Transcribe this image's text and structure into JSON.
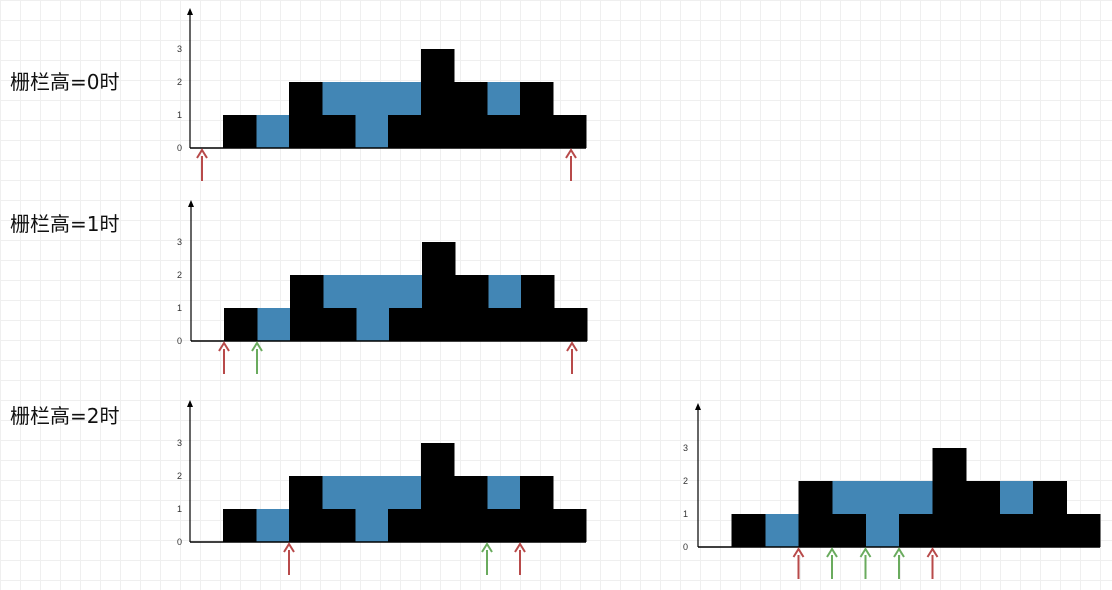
{
  "labels": [
    "栅栏高=0时",
    "栅栏高=1时",
    "栅栏高=2时"
  ],
  "colors": {
    "bar": "#000000",
    "water": "#4286b5",
    "red_arrow": "#b84a4a",
    "green_arrow": "#6aab5e"
  },
  "chart_data": {
    "type": "bar",
    "heights": [
      0,
      1,
      0,
      2,
      1,
      0,
      1,
      3,
      2,
      1,
      2,
      1
    ],
    "water": [
      0,
      0,
      1,
      0,
      1,
      2,
      1,
      0,
      0,
      1,
      0,
      0
    ],
    "y_ticks": [
      "0",
      "1",
      "2",
      "3"
    ],
    "ylim": [
      0,
      3
    ],
    "panels": [
      {
        "arrows": [
          {
            "index": 0,
            "color": "red"
          },
          {
            "index": 11,
            "color": "red"
          }
        ]
      },
      {
        "arrows": [
          {
            "index": 1,
            "color": "red"
          },
          {
            "index": 2,
            "color": "green"
          },
          {
            "index": 11,
            "color": "red"
          }
        ]
      },
      {
        "arrows": [
          {
            "index": 3,
            "color": "red"
          },
          {
            "index": 9,
            "color": "green"
          },
          {
            "index": 10,
            "color": "red"
          }
        ]
      },
      {
        "arrows": [
          {
            "index": 3,
            "color": "red"
          },
          {
            "index": 4,
            "color": "green"
          },
          {
            "index": 5,
            "color": "green"
          },
          {
            "index": 6,
            "color": "green"
          },
          {
            "index": 7,
            "color": "red"
          }
        ]
      }
    ]
  }
}
